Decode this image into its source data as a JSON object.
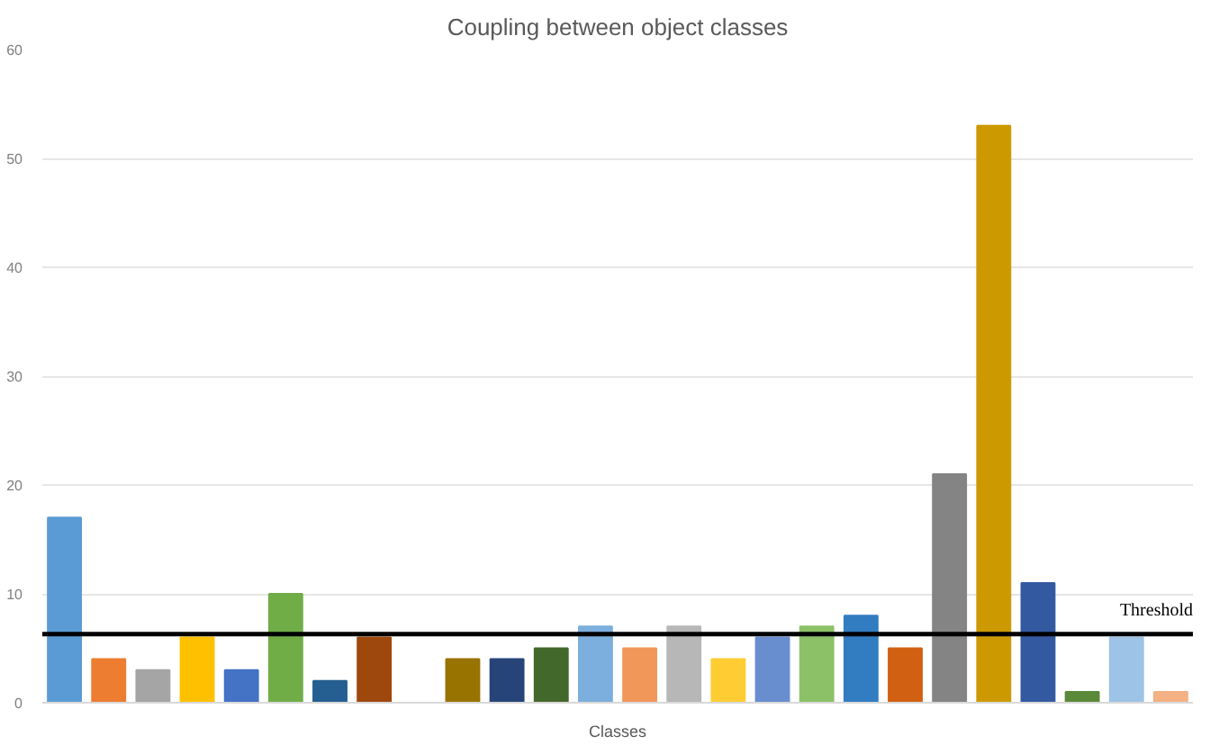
{
  "chart_data": {
    "type": "bar",
    "title": "Coupling between object classes",
    "xlabel": "Classes",
    "categories": [
      null,
      null,
      null,
      null,
      null,
      null,
      null,
      null,
      null,
      null,
      null,
      null,
      null,
      null,
      null,
      null,
      null,
      null,
      null,
      null,
      null,
      null,
      null,
      null,
      null,
      null
    ],
    "values": [
      17,
      4,
      3,
      6,
      3,
      10,
      2,
      6,
      null,
      4,
      4,
      5,
      7,
      5,
      7,
      4,
      6,
      7,
      8,
      5,
      21,
      53,
      11,
      1,
      6,
      1
    ],
    "colors": [
      "#5b9bd5",
      "#ed7d31",
      "#a5a5a5",
      "#ffc000",
      "#4472c4",
      "#70ad47",
      "#255e91",
      "#9e480e",
      "#636363",
      "#997300",
      "#264478",
      "#43682b",
      "#7cafdd",
      "#f1975a",
      "#b7b7b7",
      "#ffcd33",
      "#698ed0",
      "#8cc168",
      "#327dc2",
      "#d26012",
      "#848484",
      "#cc9a00",
      "#335aa1",
      "#5a8a39",
      "#9dc3e6",
      "#f4b183"
    ],
    "ylim": [
      0,
      60
    ],
    "yticks": [
      0,
      10,
      20,
      30,
      40,
      50,
      60
    ],
    "grid": "y",
    "ref_lines": [
      {
        "axis": "y",
        "value": 6.3,
        "label": "Threshold",
        "color": "#000000"
      }
    ]
  }
}
